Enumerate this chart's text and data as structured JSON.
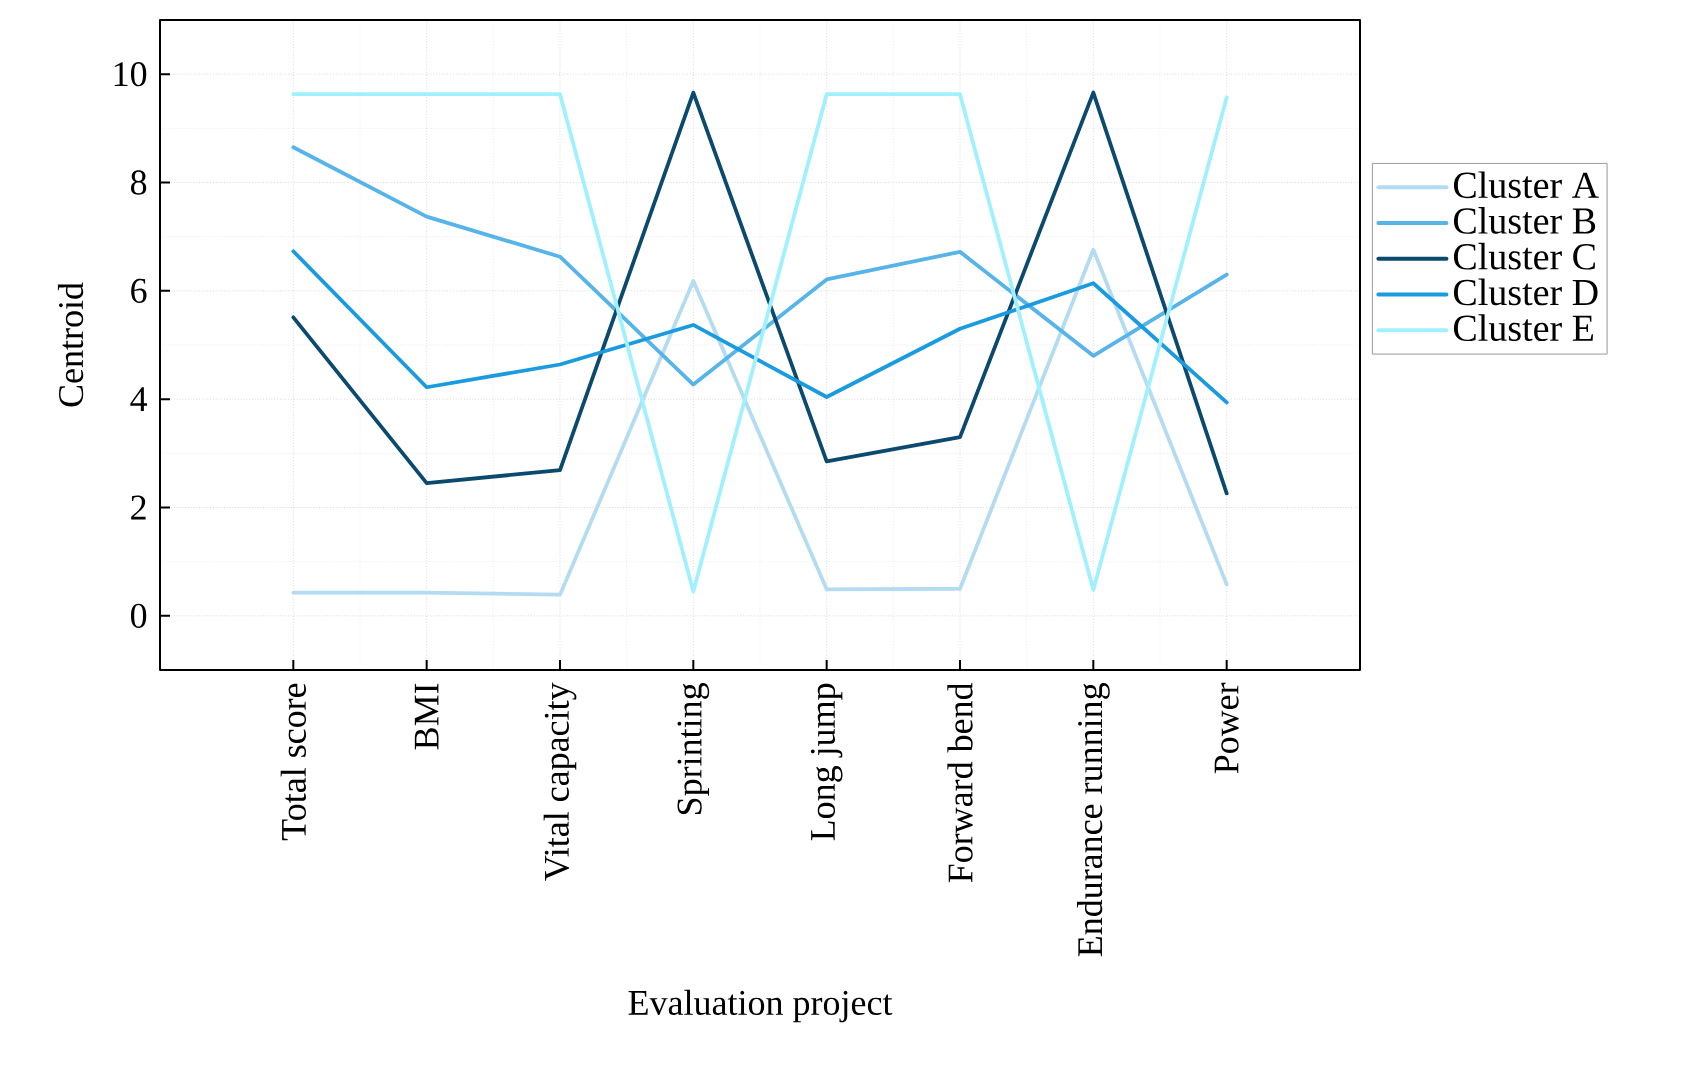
{
  "chart_data": {
    "type": "line",
    "xlabel": "Evaluation project",
    "ylabel": "Centroid",
    "categories": [
      "Total score",
      "BMI",
      "Vital capacity",
      "Sprinting",
      "Long jump",
      "Forward bend",
      "Endurance running",
      "Power"
    ],
    "series": [
      {
        "name": "Cluster A",
        "color": "#b3dcf2",
        "values": [
          0.43,
          0.43,
          0.39,
          6.18,
          0.49,
          0.5,
          6.76,
          0.58
        ]
      },
      {
        "name": "Cluster B",
        "color": "#56b4e9",
        "values": [
          8.65,
          7.37,
          6.63,
          4.27,
          6.21,
          6.72,
          4.8,
          6.3
        ]
      },
      {
        "name": "Cluster C",
        "color": "#0b4a6e",
        "values": [
          5.51,
          2.45,
          2.69,
          9.66,
          2.85,
          3.3,
          9.66,
          2.26
        ]
      },
      {
        "name": "Cluster D",
        "color": "#1a9be0",
        "values": [
          6.73,
          4.22,
          4.64,
          5.37,
          4.04,
          5.3,
          6.14,
          3.94
        ]
      },
      {
        "name": "Cluster E",
        "color": "#a0f0ff",
        "values": [
          9.63,
          9.63,
          9.63,
          0.45,
          9.63,
          9.63,
          0.48,
          9.57
        ]
      }
    ],
    "ylim": [
      -1,
      11
    ],
    "yticks": [
      0,
      2,
      4,
      6,
      8,
      10
    ],
    "grid": true,
    "legend": "right"
  }
}
